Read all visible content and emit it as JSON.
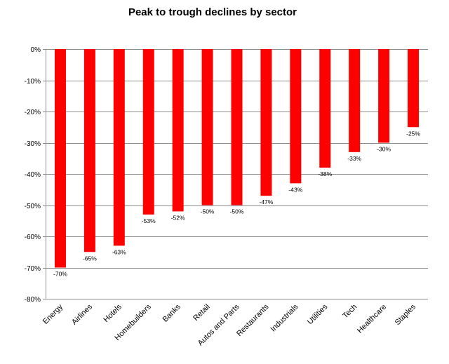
{
  "chart_data": {
    "type": "bar",
    "title": "Peak to trough declines by sector",
    "xlabel": "",
    "ylabel": "",
    "categories": [
      "Energy",
      "Airlines",
      "Hotels",
      "Homebuilders",
      "Banks",
      "Retail",
      "Autos and Parts",
      "Restaurants",
      "Industrials",
      "Utilities",
      "Tech",
      "Healthcare",
      "Staples"
    ],
    "values": [
      -70,
      -65,
      -63,
      -53,
      -52,
      -50,
      -50,
      -47,
      -43,
      -38,
      -33,
      -30,
      -25
    ],
    "data_labels": [
      "-70%",
      "-65%",
      "-63%",
      "-53%",
      "-52%",
      "-50%",
      "-50%",
      "-47%",
      "-43%",
      "-38%",
      "-33%",
      "-30%",
      "-25%"
    ],
    "yticks": [
      0,
      -10,
      -20,
      -30,
      -40,
      -50,
      -60,
      -70,
      -80
    ],
    "ytick_labels": [
      "0%",
      "-10%",
      "-20%",
      "-30%",
      "-40%",
      "-50%",
      "-60%",
      "-70%",
      "-80%"
    ],
    "ylim": [
      -80,
      0
    ],
    "grid": true,
    "legend": "none",
    "bar_color": "#ff0000"
  }
}
